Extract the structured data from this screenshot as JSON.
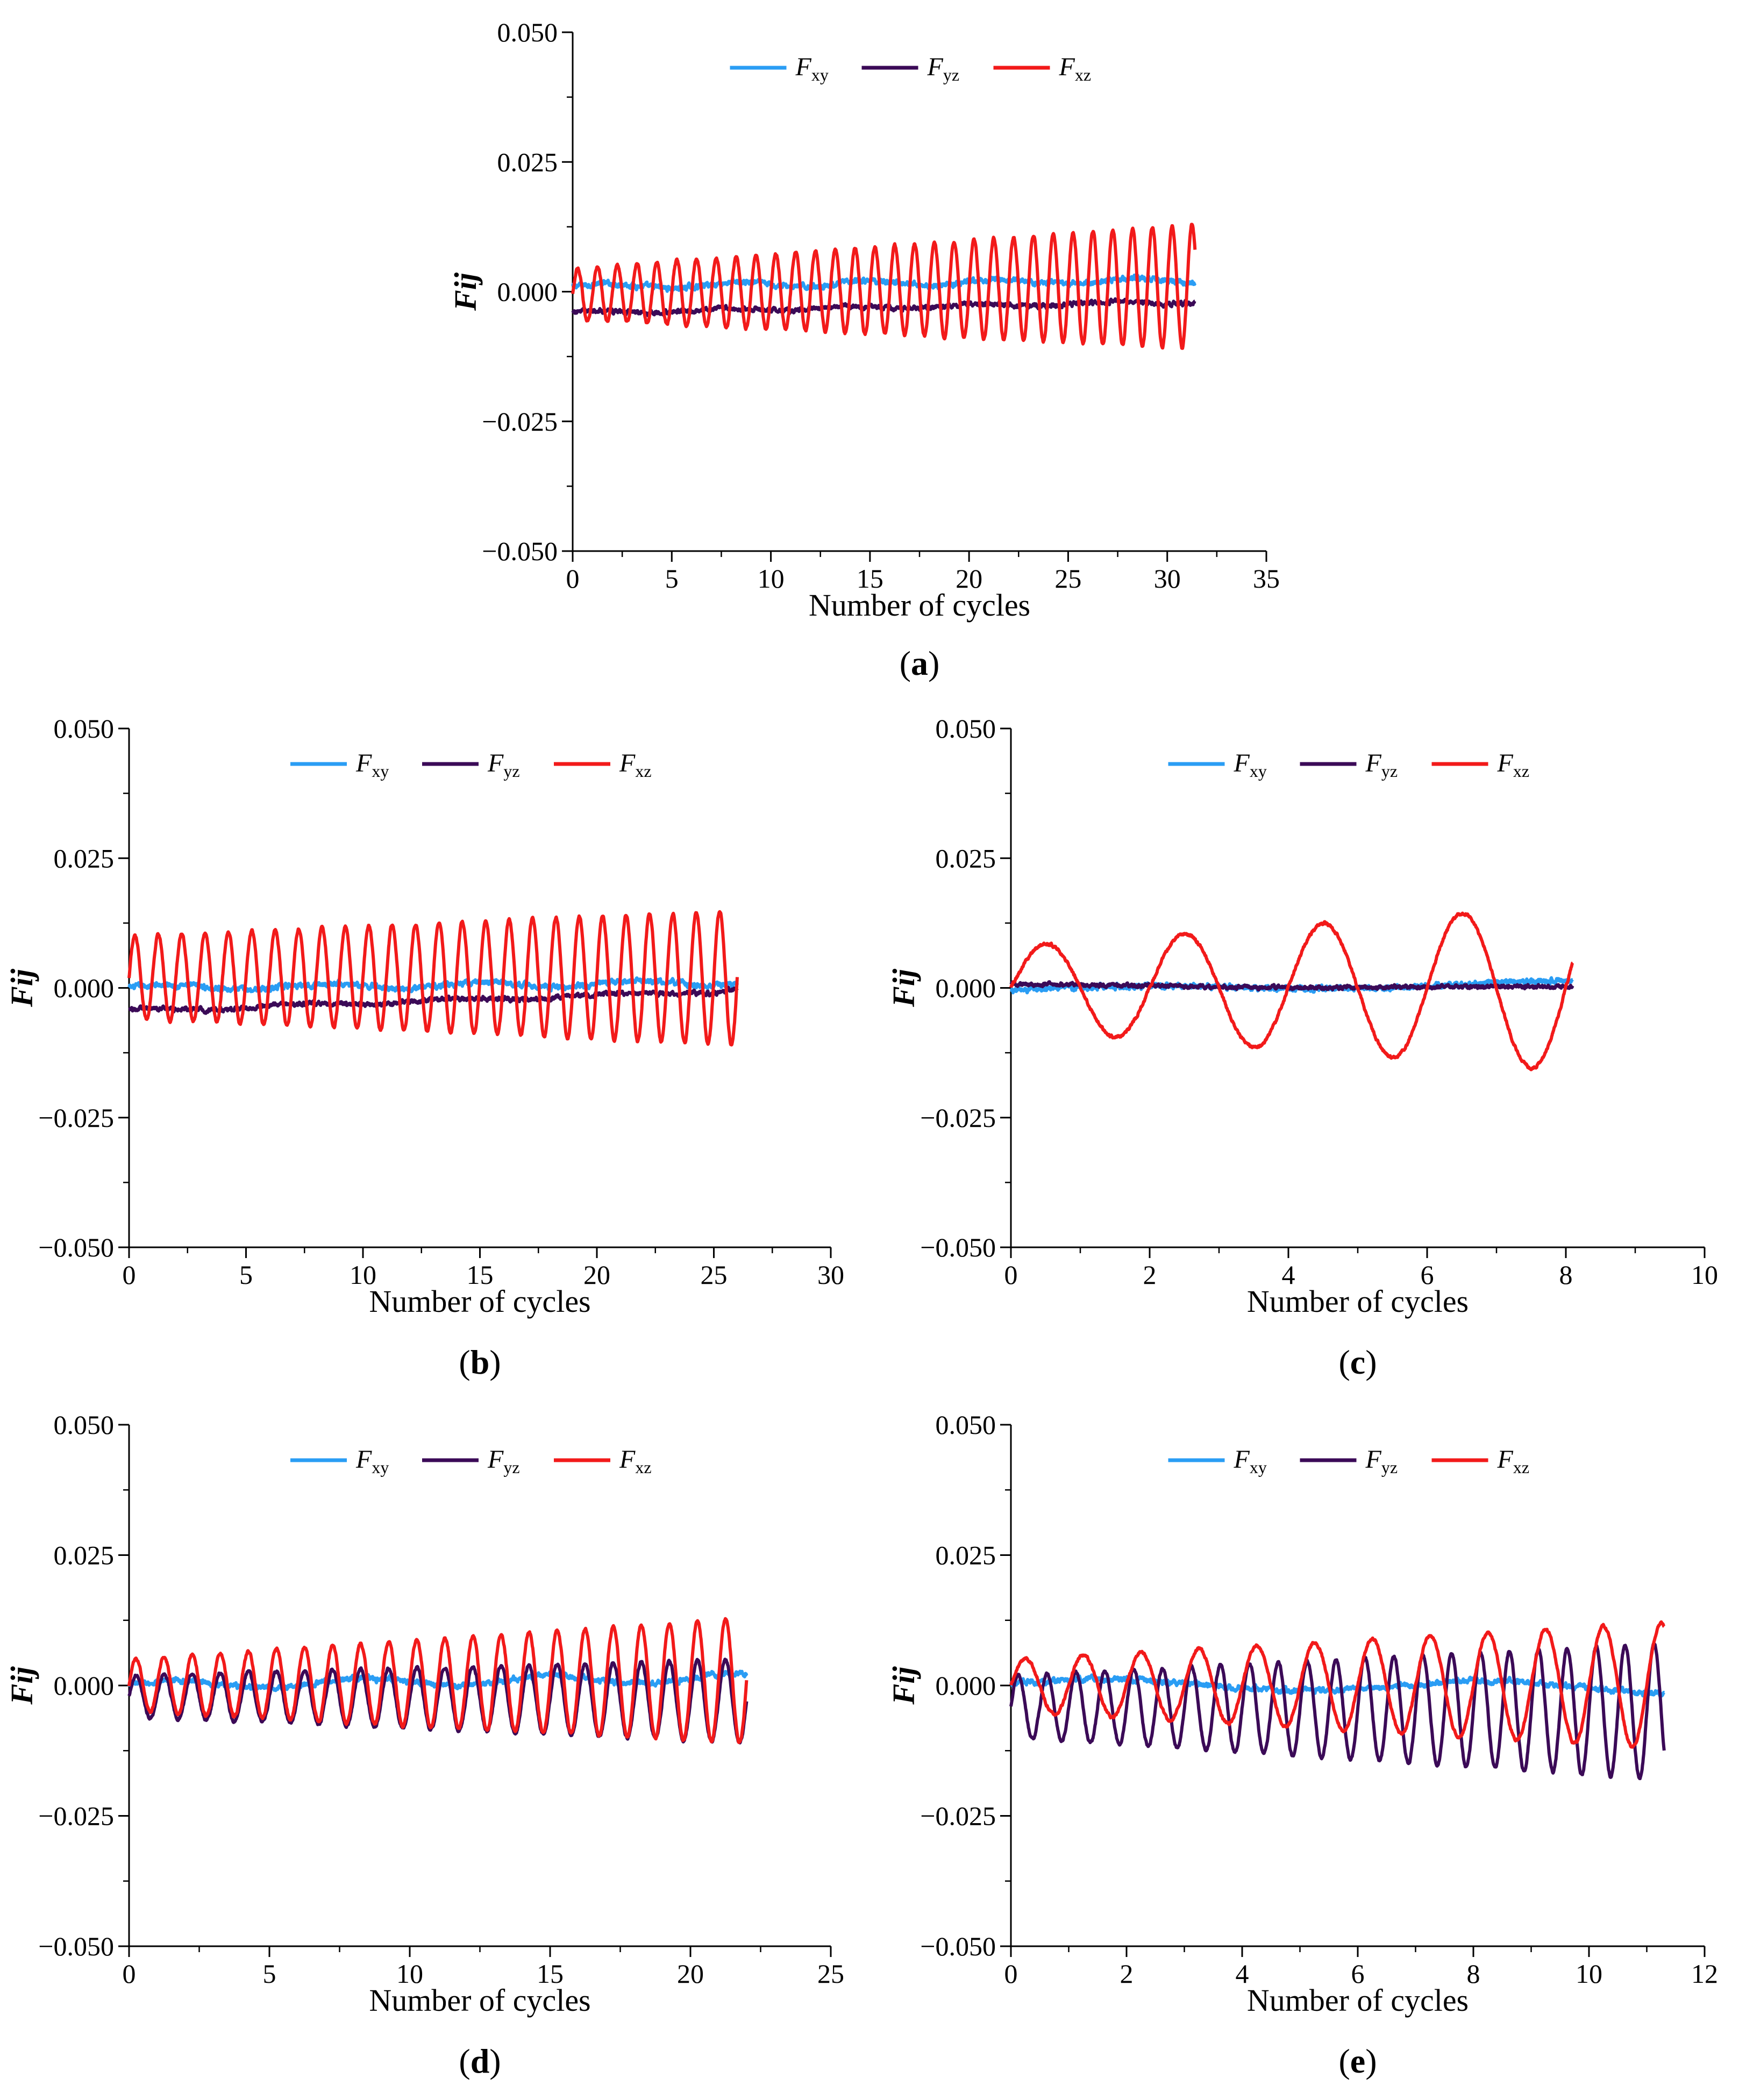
{
  "chart_data": [
    {
      "id": "a",
      "panel_label": "a",
      "type": "line",
      "xlabel": "Number of cycles",
      "ylabel": "Fij",
      "xlim": [
        0,
        35
      ],
      "ylim": [
        -0.05,
        0.05
      ],
      "xticks": [
        "0",
        "5",
        "10",
        "15",
        "20",
        "25",
        "30",
        "35"
      ],
      "yticks": [
        "−0.050",
        "−0.025",
        "0.000",
        "0.025",
        "0.050"
      ],
      "legend": [
        "Fxy",
        "Fyz",
        "Fxz"
      ],
      "xmax_data": 31.4,
      "series": [
        {
          "name": "Fxy",
          "color": "#2a9df4",
          "start": 0.001,
          "drift": 0.0012,
          "amp0": 0.0005,
          "amp1": 0.0005,
          "cycles_per_unit": 0,
          "noise": 0.0006
        },
        {
          "name": "Fyz",
          "color": "#3b0a57",
          "start": -0.004,
          "drift": 0.002,
          "amp0": 0.0003,
          "amp1": 0.0003,
          "cycles_per_unit": 0,
          "noise": 0.0005
        },
        {
          "name": "Fxz",
          "color": "#f21a1a",
          "start": -0.0005,
          "drift": 0.0015,
          "amp0": 0.005,
          "amp1": 0.012,
          "cycles_per_unit": 1,
          "noise": 0.0003
        }
      ]
    },
    {
      "id": "b",
      "panel_label": "b",
      "type": "line",
      "xlabel": "Number of cycles",
      "ylabel": "Fij",
      "xlim": [
        0,
        30
      ],
      "ylim": [
        -0.05,
        0.05
      ],
      "xticks": [
        "0",
        "5",
        "10",
        "15",
        "20",
        "25",
        "30"
      ],
      "yticks": [
        "−0.050",
        "−0.025",
        "0.000",
        "0.025",
        "0.050"
      ],
      "legend": [
        "Fxy",
        "Fyz",
        "Fxz"
      ],
      "xmax_data": 26.0,
      "series": [
        {
          "name": "Fxy",
          "color": "#2a9df4",
          "start": 0.0,
          "drift": 0.001,
          "amp0": 0.0005,
          "amp1": 0.0005,
          "cycles_per_unit": 0,
          "noise": 0.0006
        },
        {
          "name": "Fyz",
          "color": "#3b0a57",
          "start": -0.0045,
          "drift": 0.004,
          "amp0": 0.0003,
          "amp1": 0.0003,
          "cycles_per_unit": 0,
          "noise": 0.0005
        },
        {
          "name": "Fxz",
          "color": "#f21a1a",
          "start": 0.002,
          "drift": 0.0,
          "amp0": 0.008,
          "amp1": 0.013,
          "cycles_per_unit": 1,
          "noise": 0.0003
        }
      ]
    },
    {
      "id": "c",
      "panel_label": "c",
      "type": "line",
      "xlabel": "Number of cycles",
      "ylabel": "Fij",
      "xlim": [
        0,
        10
      ],
      "ylim": [
        -0.05,
        0.05
      ],
      "xticks": [
        "0",
        "2",
        "4",
        "6",
        "8",
        "10"
      ],
      "yticks": [
        "−0.050",
        "−0.025",
        "0.000",
        "0.025",
        "0.050"
      ],
      "legend": [
        "Fxy",
        "Fyz",
        "Fxz"
      ],
      "xmax_data": 8.1,
      "series": [
        {
          "name": "Fxy",
          "color": "#2a9df4",
          "start": -0.0005,
          "drift": 0.0015,
          "amp0": 0.0005,
          "amp1": 0.0005,
          "cycles_per_unit": 0,
          "noise": 0.0006
        },
        {
          "name": "Fyz",
          "color": "#3b0a57",
          "start": 0.0005,
          "drift": -0.0005,
          "amp0": 0.0002,
          "amp1": 0.0002,
          "cycles_per_unit": 0,
          "noise": 0.0004
        },
        {
          "name": "Fxz",
          "color": "#f21a1a",
          "start": 0.0,
          "drift": 0.0,
          "amp0": 0.008,
          "amp1": 0.016,
          "cycles_per_unit": 0.5,
          "noise": 0.0003
        }
      ]
    },
    {
      "id": "d",
      "panel_label": "d",
      "type": "line",
      "xlabel": "Number of cycles",
      "ylabel": "Fij",
      "xlim": [
        0,
        25
      ],
      "ylim": [
        -0.05,
        0.05
      ],
      "xticks": [
        "0",
        "5",
        "10",
        "15",
        "20",
        "25"
      ],
      "yticks": [
        "−0.050",
        "−0.025",
        "0.000",
        "0.025",
        "0.050"
      ],
      "legend": [
        "Fxy",
        "Fyz",
        "Fxz"
      ],
      "xmax_data": 22.0,
      "series": [
        {
          "name": "Fxy",
          "color": "#2a9df4",
          "start": 0.0,
          "drift": 0.0015,
          "amp0": 0.0008,
          "amp1": 0.0008,
          "cycles_per_unit": 0,
          "noise": 0.0006
        },
        {
          "name": "Fyz",
          "color": "#3b0a57",
          "start": -0.002,
          "drift": -0.001,
          "amp0": 0.004,
          "amp1": 0.008,
          "cycles_per_unit": 1,
          "noise": 0.0003
        },
        {
          "name": "Fxz",
          "color": "#f21a1a",
          "start": 0.0,
          "drift": 0.001,
          "amp0": 0.005,
          "amp1": 0.012,
          "cycles_per_unit": 1,
          "noise": 0.0003
        }
      ]
    },
    {
      "id": "e",
      "panel_label": "e",
      "type": "line",
      "xlabel": "Number of cycles",
      "ylabel": "Fij",
      "xlim": [
        0,
        12
      ],
      "ylim": [
        -0.05,
        0.05
      ],
      "xticks": [
        "0",
        "2",
        "4",
        "6",
        "8",
        "10",
        "12"
      ],
      "yticks": [
        "−0.050",
        "−0.025",
        "0.000",
        "0.025",
        "0.050"
      ],
      "legend": [
        "Fxy",
        "Fyz",
        "Fxz"
      ],
      "xmax_data": 11.3,
      "series": [
        {
          "name": "Fxy",
          "color": "#2a9df4",
          "start": 0.0005,
          "drift": -0.001,
          "amp0": 0.0008,
          "amp1": 0.0012,
          "cycles_per_unit": 0,
          "noise": 0.0006
        },
        {
          "name": "Fyz",
          "color": "#3b0a57",
          "start": -0.004,
          "drift": -0.001,
          "amp0": 0.006,
          "amp1": 0.013,
          "cycles_per_unit": 2,
          "noise": 0.0003
        },
        {
          "name": "Fxz",
          "color": "#f21a1a",
          "start": 0.0,
          "drift": 0.0,
          "amp0": 0.005,
          "amp1": 0.012,
          "cycles_per_unit": 1,
          "noise": 0.0003
        }
      ]
    }
  ]
}
